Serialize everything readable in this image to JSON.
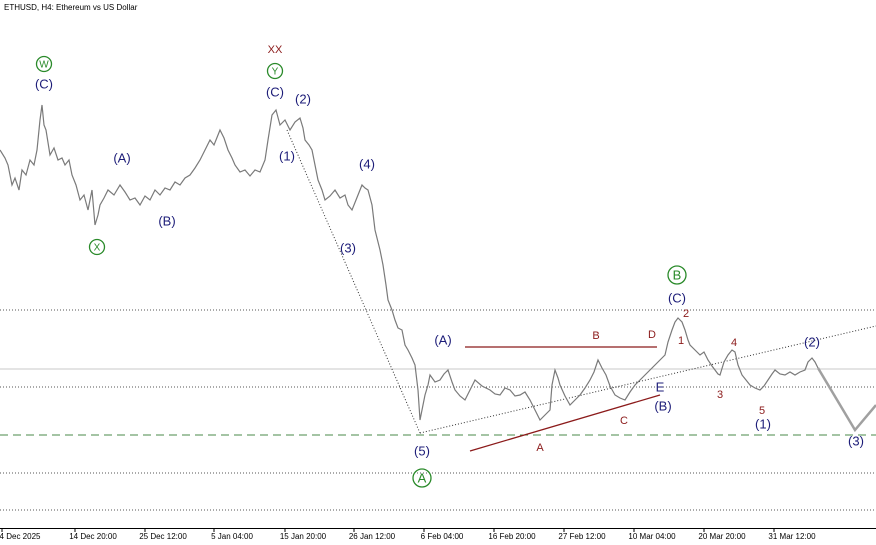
{
  "title": "ETHUSD, H4:  Ethereum vs US Dollar",
  "x_labels": [
    "4 Dec 2025",
    "14 Dec 20:00",
    "25 Dec 12:00",
    "5 Jan 04:00",
    "15 Jan 20:00",
    "26 Jan 12:00",
    "6 Feb 04:00",
    "16 Feb 20:00",
    "27 Feb 12:00",
    "10 Mar 04:00",
    "20 Mar 20:00",
    "31 Mar 12:00"
  ],
  "annotations": [
    "W",
    "(C)",
    "X",
    "(A)",
    "(B)",
    "XX",
    "Y",
    "(C)",
    "(2)",
    "(1)",
    "(4)",
    "(3)",
    "(A)",
    "(5)",
    "A",
    "B",
    "(C)",
    "B",
    "D",
    "2",
    "1",
    "4",
    "3",
    "5",
    "E",
    "(B)",
    "(1)",
    "(2)",
    "(3)",
    "A",
    "C"
  ]
}
